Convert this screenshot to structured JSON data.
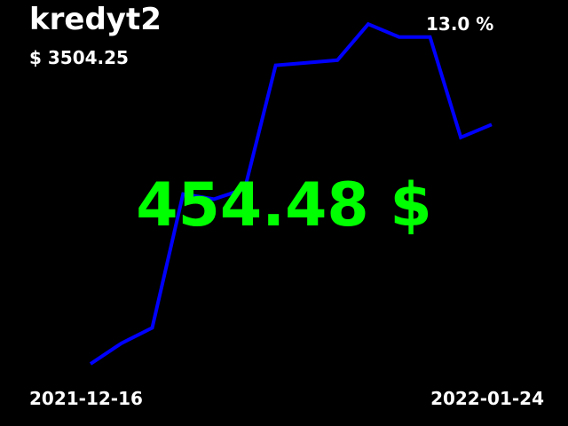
{
  "header": {
    "title": "kredyt2",
    "amount": "$ 3504.25",
    "rate": "13.0 %"
  },
  "main_value": "454.48 $",
  "footer": {
    "start_date": "2021-12-16",
    "end_date": "2022-01-24"
  },
  "colors": {
    "background": "#000000",
    "text": "#ffffff",
    "line": "#0000ff",
    "main_value": "#00ff00"
  },
  "chart_data": {
    "type": "line",
    "axes_visible": false,
    "grid": false,
    "series": [
      {
        "values": [
          0.0,
          0.4,
          0.7,
          3.3,
          3.2,
          3.4,
          5.8,
          5.85,
          5.9,
          6.6,
          6.35,
          6.35,
          4.4,
          4.65
        ]
      }
    ],
    "ylim": [
      0,
      7
    ]
  }
}
